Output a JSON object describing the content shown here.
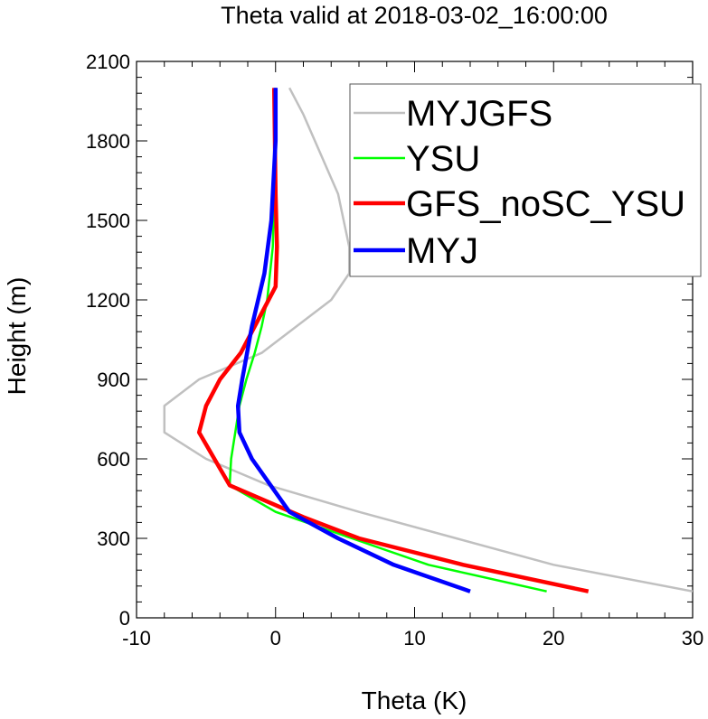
{
  "chart_data": {
    "type": "line",
    "title": "Theta valid at 2018-03-02_16:00:00",
    "xlabel": "Theta (K)",
    "ylabel": "Height (m)",
    "xlim": [
      -10,
      30
    ],
    "ylim": [
      0,
      2100
    ],
    "xticks": [
      "-10",
      "0",
      "10",
      "20",
      "30"
    ],
    "yticks": [
      "0",
      "300",
      "600",
      "900",
      "1200",
      "1500",
      "1800",
      "2100"
    ],
    "grid": false,
    "legend_position": "top-right",
    "series": [
      {
        "name": "MYJGFS",
        "color": "#c0c0c0",
        "points": [
          [
            30,
            100
          ],
          [
            20,
            200
          ],
          [
            13,
            300
          ],
          [
            6,
            400
          ],
          [
            -0.5,
            500
          ],
          [
            -5,
            600
          ],
          [
            -8,
            700
          ],
          [
            -8,
            800
          ],
          [
            -5.5,
            900
          ],
          [
            -1,
            1000
          ],
          [
            4,
            1200
          ],
          [
            5.3,
            1300
          ],
          [
            5.3,
            1400
          ],
          [
            4.5,
            1600
          ],
          [
            2,
            1900
          ],
          [
            1,
            2000
          ]
        ]
      },
      {
        "name": "YSU",
        "color": "#00ff00",
        "points": [
          [
            19.5,
            100
          ],
          [
            11,
            200
          ],
          [
            5.5,
            300
          ],
          [
            0,
            400
          ],
          [
            -3.3,
            500
          ],
          [
            -3.2,
            600
          ],
          [
            -2.9,
            700
          ],
          [
            -2.6,
            800
          ],
          [
            -2.1,
            900
          ],
          [
            -1.5,
            1000
          ],
          [
            -1,
            1100
          ],
          [
            -0.6,
            1200
          ],
          [
            -0.4,
            1300
          ],
          [
            -0.2,
            1400
          ],
          [
            -0.1,
            1600
          ],
          [
            0,
            2000
          ]
        ]
      },
      {
        "name": "GFS_noSC_YSU",
        "color": "#ff0000",
        "points": [
          [
            22.5,
            100
          ],
          [
            13.5,
            200
          ],
          [
            6,
            300
          ],
          [
            2,
            380
          ],
          [
            -3.3,
            500
          ],
          [
            -5.5,
            700
          ],
          [
            -5,
            800
          ],
          [
            -4,
            900
          ],
          [
            -2.5,
            1000
          ],
          [
            -1,
            1150
          ],
          [
            0,
            1250
          ],
          [
            0.1,
            1400
          ],
          [
            0,
            1600
          ],
          [
            -0.1,
            2000
          ]
        ]
      },
      {
        "name": "MYJ",
        "color": "#0000ff",
        "points": [
          [
            14,
            100
          ],
          [
            8.5,
            200
          ],
          [
            4.5,
            300
          ],
          [
            1,
            400
          ],
          [
            -1.7,
            600
          ],
          [
            -2.6,
            700
          ],
          [
            -2.7,
            800
          ],
          [
            -2.4,
            900
          ],
          [
            -1.7,
            1100
          ],
          [
            -0.8,
            1300
          ],
          [
            -0.3,
            1500
          ],
          [
            0,
            1800
          ],
          [
            0,
            2000
          ]
        ]
      }
    ]
  }
}
